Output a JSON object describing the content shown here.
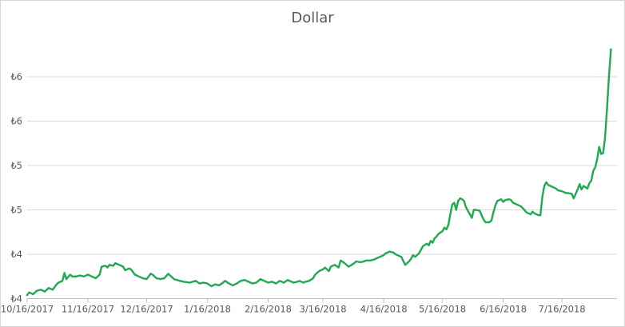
{
  "chart": {
    "title": "Dollar",
    "colors": {
      "line": "#22a851",
      "gridline": "#d9d9d9",
      "axis": "#bfbfbf",
      "text": "#595959",
      "background": "#ffffff",
      "border": "#d6d6d6"
    }
  },
  "chart_data": {
    "type": "line",
    "title": "Dollar",
    "series_name": "Dollar",
    "xlabel": "",
    "ylabel": "",
    "ylim": [
      3.5,
      6.45
    ],
    "grid": "horizontal-only",
    "legend": "none",
    "currency_symbol": "₺",
    "y_ticks": [
      {
        "value": 3.5,
        "label": "₺4"
      },
      {
        "value": 4.0,
        "label": "₺4"
      },
      {
        "value": 4.5,
        "label": "₺5"
      },
      {
        "value": 5.0,
        "label": "₺5"
      },
      {
        "value": 5.5,
        "label": "₺6"
      },
      {
        "value": 6.0,
        "label": "₺6"
      }
    ],
    "x_tick_labels": [
      "10/16/2017",
      "11/16/2017",
      "12/16/2017",
      "1/16/2018",
      "2/16/2018",
      "3/16/2018",
      "4/16/2018",
      "5/16/2018",
      "6/16/2018",
      "7/16/2018"
    ],
    "points": [
      [
        "10/16/2017",
        3.54
      ],
      [
        "10/17/2017",
        3.57
      ],
      [
        "10/19/2017",
        3.55
      ],
      [
        "10/21/2017",
        3.59
      ],
      [
        "10/23/2017",
        3.6
      ],
      [
        "10/25/2017",
        3.58
      ],
      [
        "10/27/2017",
        3.62
      ],
      [
        "10/29/2017",
        3.6
      ],
      [
        "10/31/2017",
        3.66
      ],
      [
        "11/1/2017",
        3.68
      ],
      [
        "11/3/2017",
        3.7
      ],
      [
        "11/4/2017",
        3.79
      ],
      [
        "11/5/2017",
        3.72
      ],
      [
        "11/7/2017",
        3.77
      ],
      [
        "11/8/2017",
        3.75
      ],
      [
        "11/10/2017",
        3.75
      ],
      [
        "11/12/2017",
        3.76
      ],
      [
        "11/14/2017",
        3.75
      ],
      [
        "11/16/2017",
        3.77
      ],
      [
        "11/18/2017",
        3.75
      ],
      [
        "11/20/2017",
        3.73
      ],
      [
        "11/22/2017",
        3.77
      ],
      [
        "11/23/2017",
        3.86
      ],
      [
        "11/25/2017",
        3.87
      ],
      [
        "11/26/2017",
        3.85
      ],
      [
        "11/27/2017",
        3.88
      ],
      [
        "11/29/2017",
        3.87
      ],
      [
        "11/30/2017",
        3.9
      ],
      [
        "12/2/2017",
        3.88
      ],
      [
        "12/4/2017",
        3.86
      ],
      [
        "12/5/2017",
        3.82
      ],
      [
        "12/7/2017",
        3.84
      ],
      [
        "12/8/2017",
        3.83
      ],
      [
        "12/10/2017",
        3.77
      ],
      [
        "12/12/2017",
        3.75
      ],
      [
        "12/14/2017",
        3.73
      ],
      [
        "12/16/2017",
        3.72
      ],
      [
        "12/18/2017",
        3.78
      ],
      [
        "12/19/2017",
        3.77
      ],
      [
        "12/21/2017",
        3.73
      ],
      [
        "12/23/2017",
        3.72
      ],
      [
        "12/25/2017",
        3.73
      ],
      [
        "12/27/2017",
        3.78
      ],
      [
        "12/28/2017",
        3.76
      ],
      [
        "12/30/2017",
        3.72
      ],
      [
        "1/2/2018",
        3.7
      ],
      [
        "1/4/2018",
        3.69
      ],
      [
        "1/7/2018",
        3.68
      ],
      [
        "1/10/2018",
        3.7
      ],
      [
        "1/12/2018",
        3.67
      ],
      [
        "1/14/2018",
        3.68
      ],
      [
        "1/16/2018",
        3.67
      ],
      [
        "1/18/2018",
        3.64
      ],
      [
        "1/20/2018",
        3.66
      ],
      [
        "1/22/2018",
        3.65
      ],
      [
        "1/24/2018",
        3.68
      ],
      [
        "1/25/2018",
        3.7
      ],
      [
        "1/27/2018",
        3.67
      ],
      [
        "1/29/2018",
        3.65
      ],
      [
        "1/31/2018",
        3.67
      ],
      [
        "2/2/2018",
        3.7
      ],
      [
        "2/4/2018",
        3.71
      ],
      [
        "2/6/2018",
        3.69
      ],
      [
        "2/8/2018",
        3.67
      ],
      [
        "2/10/2018",
        3.68
      ],
      [
        "2/12/2018",
        3.72
      ],
      [
        "2/14/2018",
        3.7
      ],
      [
        "2/16/2018",
        3.68
      ],
      [
        "2/18/2018",
        3.69
      ],
      [
        "2/20/2018",
        3.67
      ],
      [
        "2/22/2018",
        3.7
      ],
      [
        "2/24/2018",
        3.68
      ],
      [
        "2/26/2018",
        3.71
      ],
      [
        "2/27/2018",
        3.7
      ],
      [
        "3/1/2018",
        3.68
      ],
      [
        "3/3/2018",
        3.69
      ],
      [
        "3/4/2018",
        3.7
      ],
      [
        "3/6/2018",
        3.68
      ],
      [
        "3/7/2018",
        3.69
      ],
      [
        "3/9/2018",
        3.7
      ],
      [
        "3/11/2018",
        3.73
      ],
      [
        "3/12/2018",
        3.77
      ],
      [
        "3/14/2018",
        3.81
      ],
      [
        "3/16/2018",
        3.83
      ],
      [
        "3/17/2018",
        3.85
      ],
      [
        "3/19/2018",
        3.81
      ],
      [
        "3/20/2018",
        3.86
      ],
      [
        "3/22/2018",
        3.88
      ],
      [
        "3/24/2018",
        3.85
      ],
      [
        "3/25/2018",
        3.93
      ],
      [
        "3/27/2018",
        3.9
      ],
      [
        "3/29/2018",
        3.86
      ],
      [
        "3/30/2018",
        3.87
      ],
      [
        "4/1/2018",
        3.9
      ],
      [
        "4/2/2018",
        3.92
      ],
      [
        "4/4/2018",
        3.91
      ],
      [
        "4/6/2018",
        3.92
      ],
      [
        "4/7/2018",
        3.93
      ],
      [
        "4/9/2018",
        3.93
      ],
      [
        "4/11/2018",
        3.94
      ],
      [
        "4/12/2018",
        3.95
      ],
      [
        "4/14/2018",
        3.97
      ],
      [
        "4/16/2018",
        3.99
      ],
      [
        "4/17/2018",
        4.01
      ],
      [
        "4/19/2018",
        4.03
      ],
      [
        "4/21/2018",
        4.02
      ],
      [
        "4/22/2018",
        4.0
      ],
      [
        "4/24/2018",
        3.98
      ],
      [
        "4/25/2018",
        3.97
      ],
      [
        "4/27/2018",
        3.88
      ],
      [
        "4/29/2018",
        3.92
      ],
      [
        "4/30/2018",
        3.95
      ],
      [
        "5/1/2018",
        3.99
      ],
      [
        "5/2/2018",
        3.97
      ],
      [
        "5/4/2018",
        4.01
      ],
      [
        "5/5/2018",
        4.05
      ],
      [
        "5/6/2018",
        4.09
      ],
      [
        "5/8/2018",
        4.12
      ],
      [
        "5/9/2018",
        4.1
      ],
      [
        "5/10/2018",
        4.15
      ],
      [
        "5/11/2018",
        4.13
      ],
      [
        "5/12/2018",
        4.18
      ],
      [
        "5/13/2018",
        4.2
      ],
      [
        "5/14/2018",
        4.23
      ],
      [
        "5/16/2018",
        4.26
      ],
      [
        "5/17/2018",
        4.3
      ],
      [
        "5/18/2018",
        4.28
      ],
      [
        "5/19/2018",
        4.33
      ],
      [
        "5/20/2018",
        4.45
      ],
      [
        "5/21/2018",
        4.56
      ],
      [
        "5/22/2018",
        4.58
      ],
      [
        "5/23/2018",
        4.5
      ],
      [
        "5/24/2018",
        4.6
      ],
      [
        "5/25/2018",
        4.63
      ],
      [
        "5/26/2018",
        4.62
      ],
      [
        "5/27/2018",
        4.6
      ],
      [
        "5/28/2018",
        4.53
      ],
      [
        "5/30/2018",
        4.45
      ],
      [
        "5/31/2018",
        4.41
      ],
      [
        "6/1/2018",
        4.5
      ],
      [
        "6/2/2018",
        4.5
      ],
      [
        "6/4/2018",
        4.49
      ],
      [
        "6/5/2018",
        4.44
      ],
      [
        "6/6/2018",
        4.39
      ],
      [
        "6/7/2018",
        4.36
      ],
      [
        "6/9/2018",
        4.36
      ],
      [
        "6/10/2018",
        4.38
      ],
      [
        "6/11/2018",
        4.47
      ],
      [
        "6/12/2018",
        4.55
      ],
      [
        "6/13/2018",
        4.6
      ],
      [
        "6/15/2018",
        4.62
      ],
      [
        "6/16/2018",
        4.59
      ],
      [
        "6/17/2018",
        4.61
      ],
      [
        "6/19/2018",
        4.62
      ],
      [
        "6/20/2018",
        4.61
      ],
      [
        "6/21/2018",
        4.58
      ],
      [
        "6/23/2018",
        4.56
      ],
      [
        "6/25/2018",
        4.54
      ],
      [
        "6/26/2018",
        4.52
      ],
      [
        "6/28/2018",
        4.47
      ],
      [
        "6/30/2018",
        4.45
      ],
      [
        "7/1/2018",
        4.48
      ],
      [
        "7/2/2018",
        4.46
      ],
      [
        "7/4/2018",
        4.44
      ],
      [
        "7/5/2018",
        4.44
      ],
      [
        "7/6/2018",
        4.65
      ],
      [
        "7/7/2018",
        4.77
      ],
      [
        "7/8/2018",
        4.81
      ],
      [
        "7/9/2018",
        4.78
      ],
      [
        "7/10/2018",
        4.77
      ],
      [
        "7/11/2018",
        4.76
      ],
      [
        "7/13/2018",
        4.74
      ],
      [
        "7/14/2018",
        4.72
      ],
      [
        "7/16/2018",
        4.71
      ],
      [
        "7/18/2018",
        4.69
      ],
      [
        "7/19/2018",
        4.69
      ],
      [
        "7/21/2018",
        4.68
      ],
      [
        "7/22/2018",
        4.63
      ],
      [
        "7/24/2018",
        4.73
      ],
      [
        "7/25/2018",
        4.79
      ],
      [
        "7/26/2018",
        4.73
      ],
      [
        "7/27/2018",
        4.77
      ],
      [
        "7/29/2018",
        4.74
      ],
      [
        "7/30/2018",
        4.8
      ],
      [
        "7/31/2018",
        4.83
      ],
      [
        "8/1/2018",
        4.94
      ],
      [
        "8/2/2018",
        4.98
      ],
      [
        "8/3/2018",
        5.07
      ],
      [
        "8/4/2018",
        5.21
      ],
      [
        "8/5/2018",
        5.13
      ],
      [
        "8/6/2018",
        5.14
      ],
      [
        "8/7/2018",
        5.31
      ],
      [
        "8/8/2018",
        5.64
      ],
      [
        "8/9/2018",
        6.0
      ],
      [
        "8/10/2018",
        6.31
      ]
    ]
  }
}
